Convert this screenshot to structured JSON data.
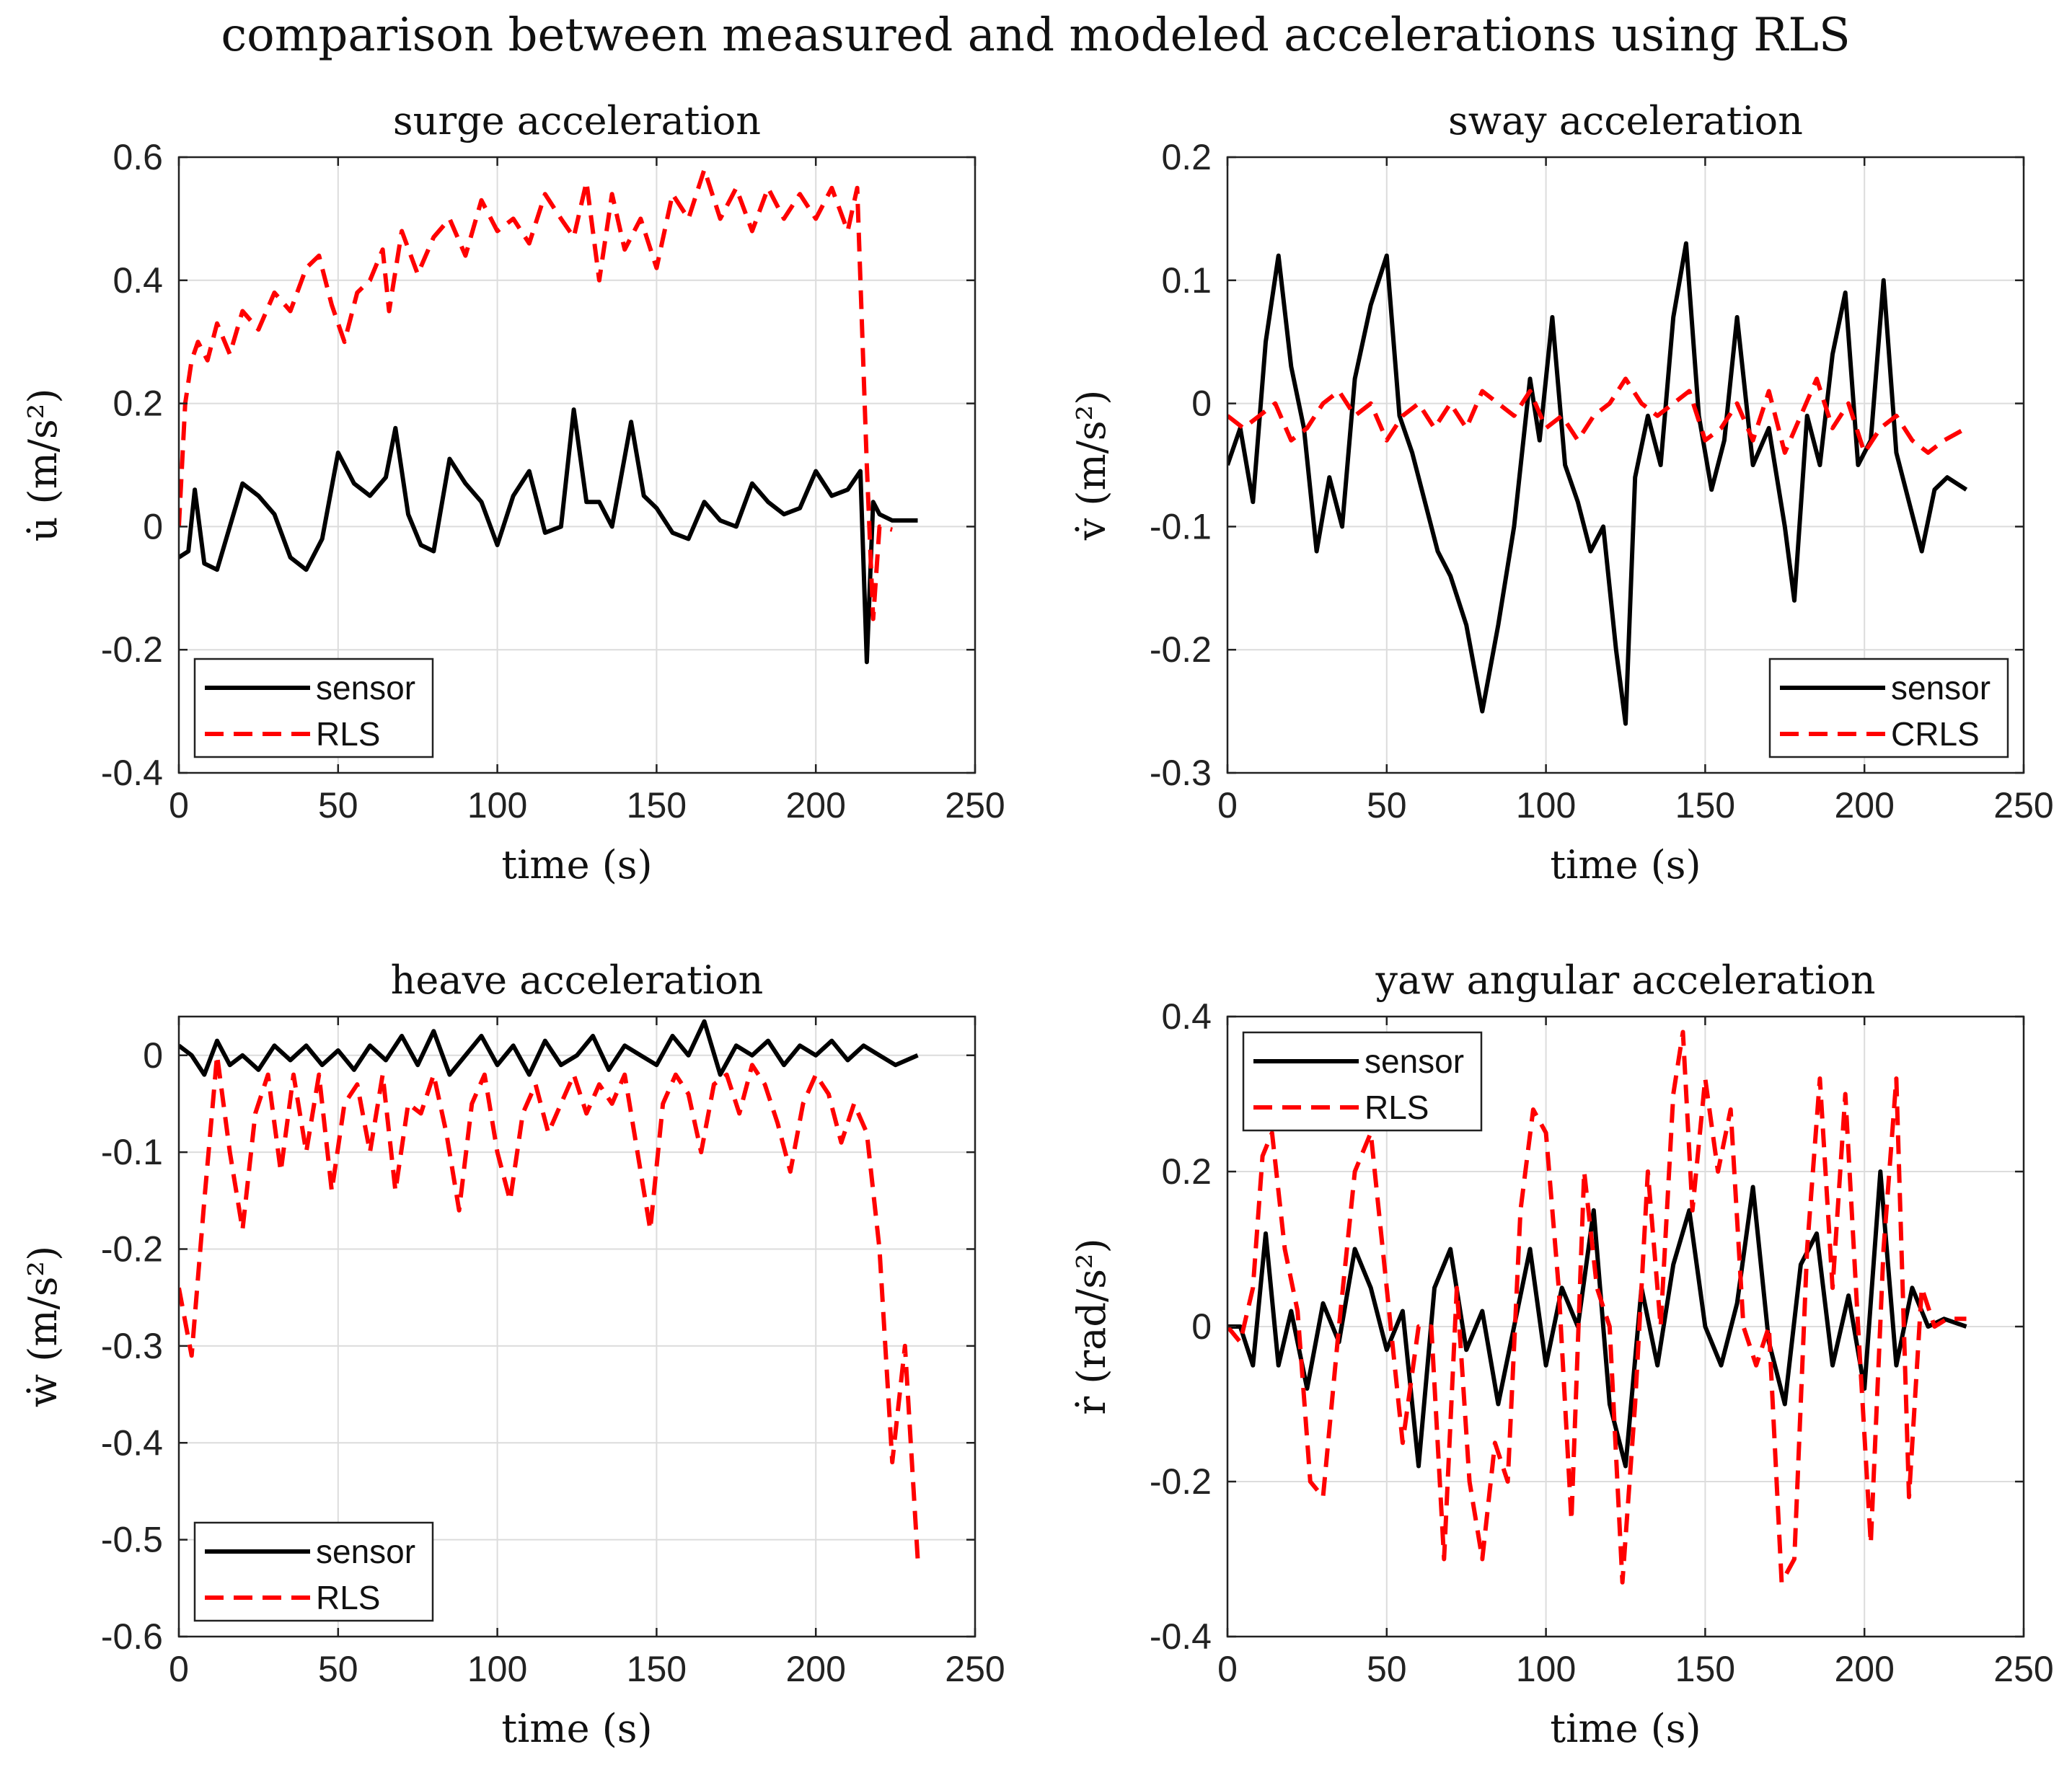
{
  "suptitle": "comparison between measured and modeled accelerations using RLS",
  "chart_data": [
    {
      "type": "line",
      "title": "surge acceleration",
      "xlabel": "time (s)",
      "ylabel": "u̇ (m/s²)",
      "xlim": [
        0,
        250
      ],
      "ylim": [
        -0.4,
        0.6
      ],
      "xticks": [
        0,
        50,
        100,
        150,
        200,
        250
      ],
      "yticks": [
        -0.4,
        -0.2,
        0,
        0.2,
        0.4,
        0.6
      ],
      "xtick_labels": [
        "0",
        "50",
        "100",
        "150",
        "200",
        "250"
      ],
      "ytick_labels": [
        "-0.4",
        "-0.2",
        "0",
        "0.2",
        "0.4",
        "0.6"
      ],
      "grid": true,
      "legend_loc": "bottom-left",
      "series": [
        {
          "name": "sensor",
          "style": "solid",
          "color": "#000000",
          "x": [
            0,
            3,
            5,
            8,
            12,
            16,
            20,
            25,
            30,
            35,
            40,
            45,
            50,
            55,
            60,
            65,
            68,
            72,
            76,
            80,
            85,
            90,
            95,
            100,
            105,
            110,
            115,
            120,
            124,
            128,
            132,
            136,
            142,
            146,
            150,
            155,
            160,
            165,
            170,
            175,
            180,
            185,
            190,
            195,
            200,
            205,
            210,
            214,
            216,
            218,
            220,
            224,
            232
          ],
          "values": [
            -0.05,
            -0.04,
            0.06,
            -0.06,
            -0.07,
            0.0,
            0.07,
            0.05,
            0.02,
            -0.05,
            -0.07,
            -0.02,
            0.12,
            0.07,
            0.05,
            0.08,
            0.16,
            0.02,
            -0.03,
            -0.04,
            0.11,
            0.07,
            0.04,
            -0.03,
            0.05,
            0.09,
            -0.01,
            0.0,
            0.19,
            0.04,
            0.04,
            0.0,
            0.17,
            0.05,
            0.03,
            -0.01,
            -0.02,
            0.04,
            0.01,
            0.0,
            0.07,
            0.04,
            0.02,
            0.03,
            0.09,
            0.05,
            0.06,
            0.09,
            -0.22,
            0.04,
            0.02,
            0.01,
            0.01
          ]
        },
        {
          "name": "RLS",
          "style": "dashed",
          "color": "#ff0000",
          "x": [
            0,
            2,
            4,
            6,
            9,
            12,
            16,
            20,
            25,
            30,
            35,
            40,
            44,
            48,
            52,
            56,
            60,
            64,
            66,
            70,
            75,
            80,
            85,
            90,
            95,
            100,
            105,
            110,
            115,
            120,
            124,
            128,
            132,
            136,
            140,
            145,
            150,
            155,
            160,
            165,
            170,
            175,
            180,
            185,
            190,
            195,
            200,
            205,
            210,
            213,
            216,
            218,
            220,
            224
          ],
          "values": [
            0.0,
            0.2,
            0.27,
            0.3,
            0.27,
            0.33,
            0.28,
            0.35,
            0.32,
            0.38,
            0.35,
            0.42,
            0.44,
            0.36,
            0.3,
            0.38,
            0.4,
            0.45,
            0.35,
            0.48,
            0.41,
            0.47,
            0.5,
            0.44,
            0.53,
            0.48,
            0.5,
            0.46,
            0.54,
            0.5,
            0.47,
            0.56,
            0.4,
            0.54,
            0.45,
            0.5,
            0.42,
            0.54,
            0.5,
            0.58,
            0.5,
            0.55,
            0.48,
            0.55,
            0.5,
            0.54,
            0.5,
            0.55,
            0.48,
            0.55,
            0.1,
            -0.15,
            0.0,
            -0.005
          ]
        }
      ]
    },
    {
      "type": "line",
      "title": "sway acceleration",
      "xlabel": "time (s)",
      "ylabel": "v̇ (m/s²)",
      "xlim": [
        0,
        250
      ],
      "ylim": [
        -0.3,
        0.2
      ],
      "xticks": [
        0,
        50,
        100,
        150,
        200,
        250
      ],
      "yticks": [
        -0.3,
        -0.2,
        -0.1,
        0,
        0.1,
        0.2
      ],
      "xtick_labels": [
        "0",
        "50",
        "100",
        "150",
        "200",
        "250"
      ],
      "ytick_labels": [
        "-0.3",
        "-0.2",
        "-0.1",
        "0",
        "0.1",
        "0.2"
      ],
      "grid": true,
      "legend_loc": "bottom-right",
      "series": [
        {
          "name": "sensor",
          "style": "solid",
          "color": "#000000",
          "x": [
            0,
            4,
            8,
            12,
            16,
            20,
            24,
            28,
            32,
            36,
            40,
            45,
            50,
            54,
            58,
            62,
            66,
            70,
            75,
            80,
            85,
            90,
            95,
            98,
            102,
            106,
            110,
            114,
            118,
            122,
            125,
            128,
            132,
            136,
            140,
            144,
            148,
            152,
            156,
            160,
            165,
            170,
            175,
            178,
            182,
            186,
            190,
            194,
            198,
            202,
            206,
            210,
            214,
            218,
            222,
            226,
            232
          ],
          "values": [
            -0.05,
            -0.02,
            -0.08,
            0.05,
            0.12,
            0.03,
            -0.02,
            -0.12,
            -0.06,
            -0.1,
            0.02,
            0.08,
            0.12,
            -0.01,
            -0.04,
            -0.08,
            -0.12,
            -0.14,
            -0.18,
            -0.25,
            -0.18,
            -0.1,
            0.02,
            -0.03,
            0.07,
            -0.05,
            -0.08,
            -0.12,
            -0.1,
            -0.2,
            -0.26,
            -0.06,
            -0.01,
            -0.05,
            0.07,
            0.13,
            -0.01,
            -0.07,
            -0.03,
            0.07,
            -0.05,
            -0.02,
            -0.1,
            -0.16,
            -0.01,
            -0.05,
            0.04,
            0.09,
            -0.05,
            -0.03,
            0.1,
            -0.04,
            -0.08,
            -0.12,
            -0.07,
            -0.06,
            -0.07
          ]
        },
        {
          "name": "CRLS",
          "style": "dashed",
          "color": "#ff0000",
          "x": [
            0,
            5,
            10,
            15,
            20,
            25,
            30,
            35,
            40,
            45,
            50,
            55,
            60,
            65,
            70,
            75,
            80,
            85,
            90,
            95,
            100,
            105,
            110,
            115,
            120,
            125,
            130,
            135,
            140,
            145,
            150,
            155,
            160,
            165,
            170,
            175,
            180,
            185,
            190,
            195,
            200,
            205,
            210,
            215,
            220,
            225,
            232
          ],
          "values": [
            -0.01,
            -0.02,
            -0.01,
            0.0,
            -0.03,
            -0.02,
            0.0,
            0.01,
            -0.01,
            0.0,
            -0.03,
            -0.01,
            0.0,
            -0.02,
            0.0,
            -0.02,
            0.01,
            0.0,
            -0.01,
            0.01,
            -0.02,
            -0.01,
            -0.03,
            -0.01,
            0.0,
            0.02,
            0.0,
            -0.01,
            0.0,
            0.01,
            -0.03,
            -0.02,
            0.0,
            -0.03,
            0.01,
            -0.04,
            -0.01,
            0.02,
            -0.02,
            0.0,
            -0.04,
            -0.02,
            -0.01,
            -0.03,
            -0.04,
            -0.03,
            -0.02
          ]
        }
      ]
    },
    {
      "type": "line",
      "title": "heave acceleration",
      "xlabel": "time (s)",
      "ylabel": "ẇ (m/s²)",
      "xlim": [
        0,
        250
      ],
      "ylim": [
        -0.6,
        0.04
      ],
      "xticks": [
        0,
        50,
        100,
        150,
        200,
        250
      ],
      "yticks": [
        -0.6,
        -0.5,
        -0.4,
        -0.3,
        -0.2,
        -0.1,
        0
      ],
      "xtick_labels": [
        "0",
        "50",
        "100",
        "150",
        "200",
        "250"
      ],
      "ytick_labels": [
        "-0.6",
        "-0.5",
        "-0.4",
        "-0.3",
        "-0.2",
        "-0.1",
        "0"
      ],
      "grid": true,
      "legend_loc": "bottom-left",
      "series": [
        {
          "name": "sensor",
          "style": "solid",
          "color": "#000000",
          "x": [
            0,
            4,
            8,
            12,
            16,
            20,
            25,
            30,
            35,
            40,
            45,
            50,
            55,
            60,
            65,
            70,
            75,
            80,
            85,
            90,
            95,
            100,
            105,
            110,
            115,
            120,
            125,
            130,
            135,
            140,
            145,
            150,
            155,
            160,
            165,
            170,
            175,
            180,
            185,
            190,
            195,
            200,
            205,
            210,
            215,
            220,
            225,
            232
          ],
          "values": [
            0.01,
            0.0,
            -0.02,
            0.015,
            -0.01,
            0.0,
            -0.015,
            0.01,
            -0.005,
            0.01,
            -0.01,
            0.005,
            -0.015,
            0.01,
            -0.005,
            0.02,
            -0.01,
            0.025,
            -0.02,
            0.0,
            0.02,
            -0.01,
            0.01,
            -0.02,
            0.015,
            -0.01,
            0.0,
            0.02,
            -0.015,
            0.01,
            0.0,
            -0.01,
            0.02,
            0.0,
            0.035,
            -0.02,
            0.01,
            0.0,
            0.015,
            -0.01,
            0.01,
            0.0,
            0.015,
            -0.005,
            0.01,
            0.0,
            -0.01,
            0.0
          ]
        },
        {
          "name": "RLS",
          "style": "dashed",
          "color": "#ff0000",
          "x": [
            0,
            4,
            8,
            12,
            16,
            20,
            24,
            28,
            32,
            36,
            40,
            44,
            48,
            52,
            56,
            60,
            64,
            68,
            72,
            76,
            80,
            84,
            88,
            92,
            96,
            100,
            104,
            108,
            112,
            116,
            120,
            124,
            128,
            132,
            136,
            140,
            144,
            148,
            152,
            156,
            160,
            164,
            168,
            172,
            176,
            180,
            184,
            188,
            192,
            196,
            200,
            204,
            208,
            212,
            216,
            220,
            224,
            228,
            232
          ],
          "values": [
            -0.24,
            -0.31,
            -0.15,
            0.0,
            -0.1,
            -0.18,
            -0.06,
            -0.02,
            -0.12,
            -0.02,
            -0.1,
            -0.02,
            -0.14,
            -0.05,
            -0.03,
            -0.1,
            -0.02,
            -0.14,
            -0.05,
            -0.06,
            -0.02,
            -0.08,
            -0.16,
            -0.05,
            -0.02,
            -0.1,
            -0.15,
            -0.06,
            -0.03,
            -0.08,
            -0.05,
            -0.02,
            -0.06,
            -0.03,
            -0.05,
            -0.02,
            -0.1,
            -0.18,
            -0.05,
            -0.02,
            -0.04,
            -0.1,
            -0.03,
            -0.02,
            -0.06,
            -0.01,
            -0.03,
            -0.07,
            -0.12,
            -0.05,
            -0.02,
            -0.04,
            -0.09,
            -0.05,
            -0.08,
            -0.2,
            -0.42,
            -0.3,
            -0.52
          ]
        }
      ]
    },
    {
      "type": "line",
      "title": "yaw angular acceleration",
      "xlabel": "time (s)",
      "ylabel": "ṙ (rad/s²)",
      "xlim": [
        0,
        250
      ],
      "ylim": [
        -0.4,
        0.4
      ],
      "xticks": [
        0,
        50,
        100,
        150,
        200,
        250
      ],
      "yticks": [
        -0.4,
        -0.2,
        0,
        0.2,
        0.4
      ],
      "xtick_labels": [
        "0",
        "50",
        "100",
        "150",
        "200",
        "250"
      ],
      "ytick_labels": [
        "-0.4",
        "-0.2",
        "0",
        "0.2",
        "0.4"
      ],
      "grid": true,
      "legend_loc": "top-left",
      "series": [
        {
          "name": "sensor",
          "style": "solid",
          "color": "#000000",
          "x": [
            0,
            4,
            8,
            12,
            16,
            20,
            25,
            30,
            35,
            40,
            45,
            50,
            55,
            60,
            65,
            70,
            75,
            80,
            85,
            90,
            95,
            100,
            105,
            110,
            115,
            120,
            125,
            130,
            135,
            140,
            145,
            150,
            155,
            160,
            165,
            170,
            175,
            180,
            185,
            190,
            195,
            200,
            205,
            210,
            215,
            220,
            225,
            232
          ],
          "values": [
            0.0,
            0.0,
            -0.05,
            0.12,
            -0.05,
            0.02,
            -0.08,
            0.03,
            -0.02,
            0.1,
            0.05,
            -0.03,
            0.02,
            -0.18,
            0.05,
            0.1,
            -0.03,
            0.02,
            -0.1,
            0.0,
            0.1,
            -0.05,
            0.05,
            0.0,
            0.15,
            -0.1,
            -0.18,
            0.05,
            -0.05,
            0.08,
            0.15,
            0.0,
            -0.05,
            0.03,
            0.18,
            -0.02,
            -0.1,
            0.08,
            0.12,
            -0.05,
            0.04,
            -0.08,
            0.2,
            -0.05,
            0.05,
            0.0,
            0.01,
            0.0
          ]
        },
        {
          "name": "RLS",
          "style": "dashed",
          "color": "#ff0000",
          "x": [
            0,
            4,
            8,
            11,
            14,
            18,
            22,
            26,
            30,
            35,
            40,
            45,
            50,
            55,
            60,
            64,
            68,
            72,
            76,
            80,
            84,
            88,
            92,
            96,
            100,
            104,
            108,
            112,
            116,
            120,
            124,
            128,
            132,
            136,
            140,
            143,
            146,
            150,
            154,
            158,
            162,
            166,
            170,
            174,
            178,
            182,
            186,
            190,
            194,
            198,
            202,
            206,
            210,
            214,
            218,
            222,
            226,
            232
          ],
          "values": [
            0.0,
            -0.02,
            0.05,
            0.22,
            0.25,
            0.1,
            0.02,
            -0.2,
            -0.22,
            0.0,
            0.2,
            0.25,
            0.05,
            -0.15,
            0.0,
            0.0,
            -0.3,
            0.05,
            -0.2,
            -0.3,
            -0.15,
            -0.2,
            0.15,
            0.28,
            0.25,
            0.05,
            -0.25,
            0.2,
            0.05,
            0.0,
            -0.33,
            -0.1,
            0.2,
            0.0,
            0.3,
            0.38,
            0.15,
            0.32,
            0.2,
            0.28,
            0.0,
            -0.05,
            0.0,
            -0.33,
            -0.3,
            0.1,
            0.32,
            0.05,
            0.3,
            0.0,
            -0.28,
            0.1,
            0.32,
            -0.22,
            0.05,
            0.0,
            0.01,
            0.01
          ]
        }
      ]
    }
  ]
}
